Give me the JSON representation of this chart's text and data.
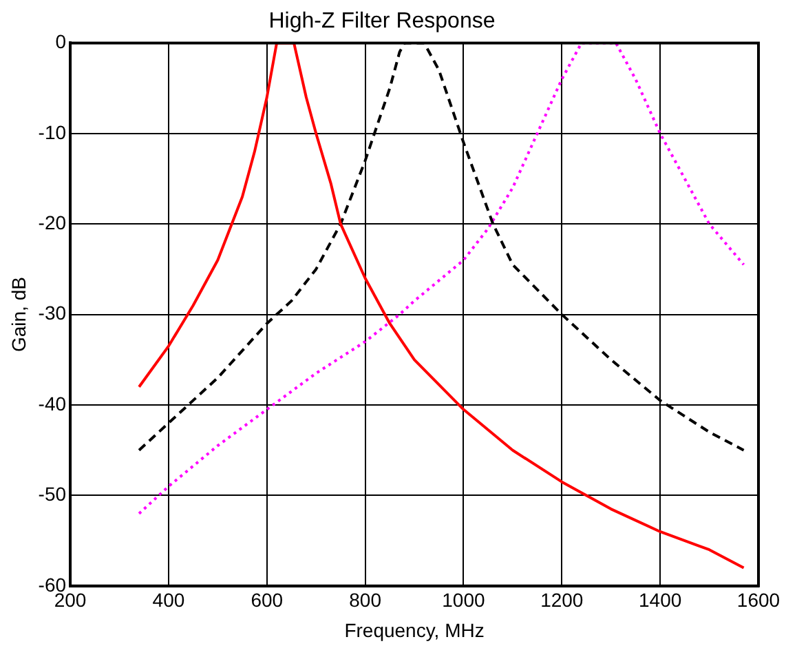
{
  "chart_data": {
    "type": "line",
    "title": "High-Z Filter Response",
    "xlabel": "Frequency, MHz",
    "ylabel": "Gain, dB",
    "xlim": [
      200,
      1600
    ],
    "xticks": [
      200,
      400,
      600,
      800,
      1000,
      1200,
      1400,
      1600
    ],
    "ylim": [
      -60,
      0
    ],
    "yticks": [
      -60,
      -50,
      -40,
      -30,
      -20,
      -10,
      0
    ],
    "grid": true,
    "legend": false,
    "marker": "none",
    "series": [
      {
        "color": "#ff0000",
        "line_style": "solid",
        "x": [
          340,
          400,
          450,
          500,
          550,
          575,
          600,
          620,
          655,
          680,
          700,
          730,
          750,
          800,
          850,
          900,
          1000,
          1100,
          1200,
          1300,
          1400,
          1500,
          1570
        ],
        "values": [
          -38,
          -33.5,
          -29,
          -24,
          -17,
          -12,
          -6,
          0,
          0,
          -6,
          -10,
          -15.5,
          -20,
          -26,
          -31,
          -35,
          -40.5,
          -45,
          -48.5,
          -51.5,
          -54,
          -56,
          -58
        ]
      },
      {
        "color": "#000000",
        "line_style": "dashed",
        "x": [
          340,
          400,
          500,
          600,
          650,
          700,
          750,
          800,
          850,
          870,
          880,
          920,
          950,
          1000,
          1060,
          1100,
          1200,
          1300,
          1400,
          1500,
          1570
        ],
        "values": [
          -45,
          -42,
          -37,
          -31,
          -28.5,
          -25,
          -20,
          -13,
          -5,
          -1,
          0,
          0,
          -3,
          -11,
          -20,
          -24.5,
          -30,
          -35,
          -39.5,
          -43,
          -45
        ]
      },
      {
        "color": "#ff00ff",
        "line_style": "dotted",
        "x": [
          340,
          400,
          500,
          600,
          700,
          800,
          870,
          900,
          1000,
          1050,
          1100,
          1150,
          1200,
          1240,
          1310,
          1350,
          1400,
          1450,
          1500,
          1570
        ],
        "values": [
          -52,
          -49,
          -44.5,
          -40.5,
          -36.5,
          -33,
          -30,
          -28.5,
          -24,
          -20.5,
          -16,
          -10,
          -4,
          0,
          0,
          -4,
          -10,
          -15,
          -20,
          -24.5
        ]
      }
    ]
  }
}
